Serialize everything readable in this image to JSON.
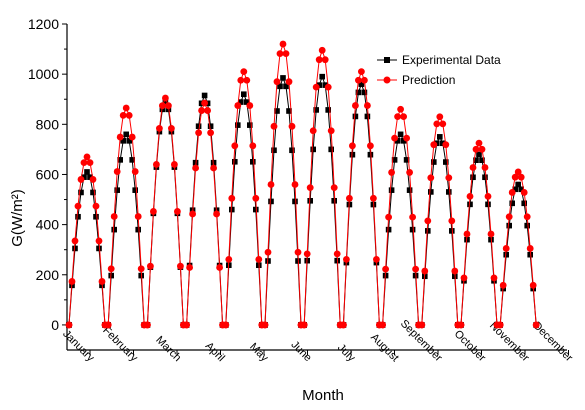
{
  "chart_data": {
    "type": "line",
    "title": "",
    "xlabel": "Month",
    "ylabel": "G(W/m²)",
    "ylim": [
      -100,
      1200
    ],
    "yticks": [
      0,
      200,
      400,
      600,
      800,
      1000,
      1200
    ],
    "categories": [
      "January",
      "February",
      "March",
      "April",
      "May",
      "June",
      "July",
      "August",
      "September",
      "October",
      "November",
      "December"
    ],
    "legend_position": "top-right",
    "grid": false,
    "series": [
      {
        "name": "Experimental Data",
        "color": "#000000",
        "marker": "square",
        "peaks": [
          610,
          760,
          890,
          915,
          920,
          985,
          990,
          960,
          760,
          750,
          680,
          560
        ]
      },
      {
        "name": "Prediction",
        "color": "#ff0000",
        "marker": "circle",
        "peaks": [
          670,
          865,
          905,
          885,
          1010,
          1120,
          1095,
          1010,
          860,
          830,
          725,
          610
        ]
      }
    ]
  }
}
